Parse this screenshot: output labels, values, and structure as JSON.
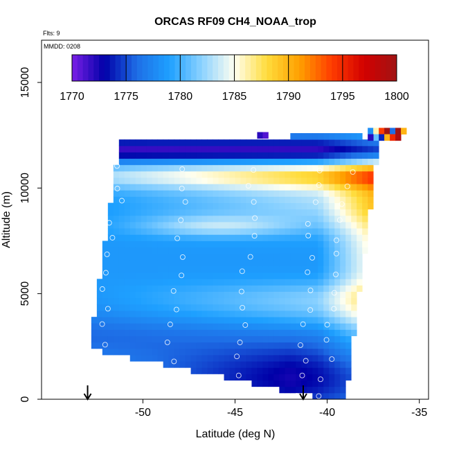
{
  "chart_data": {
    "type": "heatmap",
    "title": "ORCAS RF09 CH4_NOAA_trop",
    "annotations": {
      "flights": "Flts: 9",
      "date": "MMDD: 0208"
    },
    "xlabel": "Latitude (deg N)",
    "ylabel": "Altitude (m)",
    "xlim": [
      -55.5,
      -34.5
    ],
    "ylim": [
      0,
      17000
    ],
    "xticks": [
      -50,
      -45,
      -40,
      -35
    ],
    "xtick_labels": [
      "-50",
      "-45",
      "-40",
      "-35"
    ],
    "yticks": [
      0,
      5000,
      10000,
      15000
    ],
    "ytick_labels": [
      "0",
      "5000",
      "10000",
      "15000"
    ],
    "colorbar": {
      "min": 1770,
      "max": 1800,
      "ticks": [
        1770,
        1775,
        1780,
        1785,
        1790,
        1795,
        1800
      ],
      "tick_labels": [
        "1770",
        "1775",
        "1780",
        "1785",
        "1790",
        "1795",
        "1800"
      ],
      "colors": [
        "#7a1ee6",
        "#0000a8",
        "#1e6ee6",
        "#1ea0ff",
        "#8cd2ff",
        "#fffff0",
        "#ffdc3c",
        "#ffa000",
        "#ff3c00",
        "#d20000",
        "#a01414"
      ],
      "position": "top"
    },
    "markers": {
      "latitudes": [
        -53,
        -41.3
      ],
      "symbol": "down-arrow"
    },
    "grid": false
  }
}
